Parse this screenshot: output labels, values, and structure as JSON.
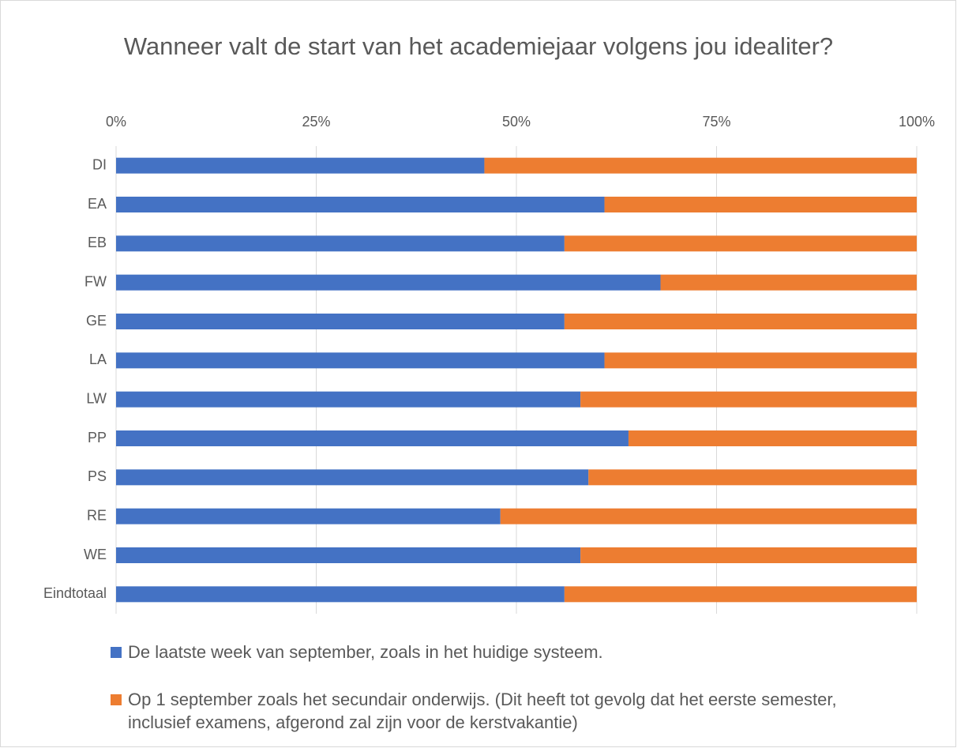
{
  "chart_data": {
    "type": "stacked_barh",
    "title": "Wanneer valt de start van het academiejaar volgens jou idealiter?",
    "categories": [
      "DI",
      "EA",
      "EB",
      "FW",
      "GE",
      "LA",
      "LW",
      "PP",
      "PS",
      "RE",
      "WE",
      "Eindtotaal"
    ],
    "series": [
      {
        "name": "De laatste week van september, zoals in het huidige systeem.",
        "color": "#4472c4",
        "values": [
          46,
          61,
          56,
          68,
          56,
          61,
          58,
          64,
          59,
          48,
          58,
          56
        ]
      },
      {
        "name": "Op 1 september zoals het secundair onderwijs. (Dit heeft tot gevolg dat het eerste semester, inclusief examens, afgerond zal zijn voor de kerstvakantie)",
        "color": "#ed7d31",
        "values": [
          54,
          39,
          44,
          32,
          44,
          39,
          42,
          36,
          41,
          52,
          42,
          44
        ]
      }
    ],
    "xlim": [
      0,
      100
    ],
    "xticks": [
      {
        "value": 0,
        "label": "0%"
      },
      {
        "value": 25,
        "label": "25%"
      },
      {
        "value": 50,
        "label": "50%"
      },
      {
        "value": 75,
        "label": "75%"
      },
      {
        "value": 100,
        "label": "100%"
      }
    ],
    "grid": true
  }
}
